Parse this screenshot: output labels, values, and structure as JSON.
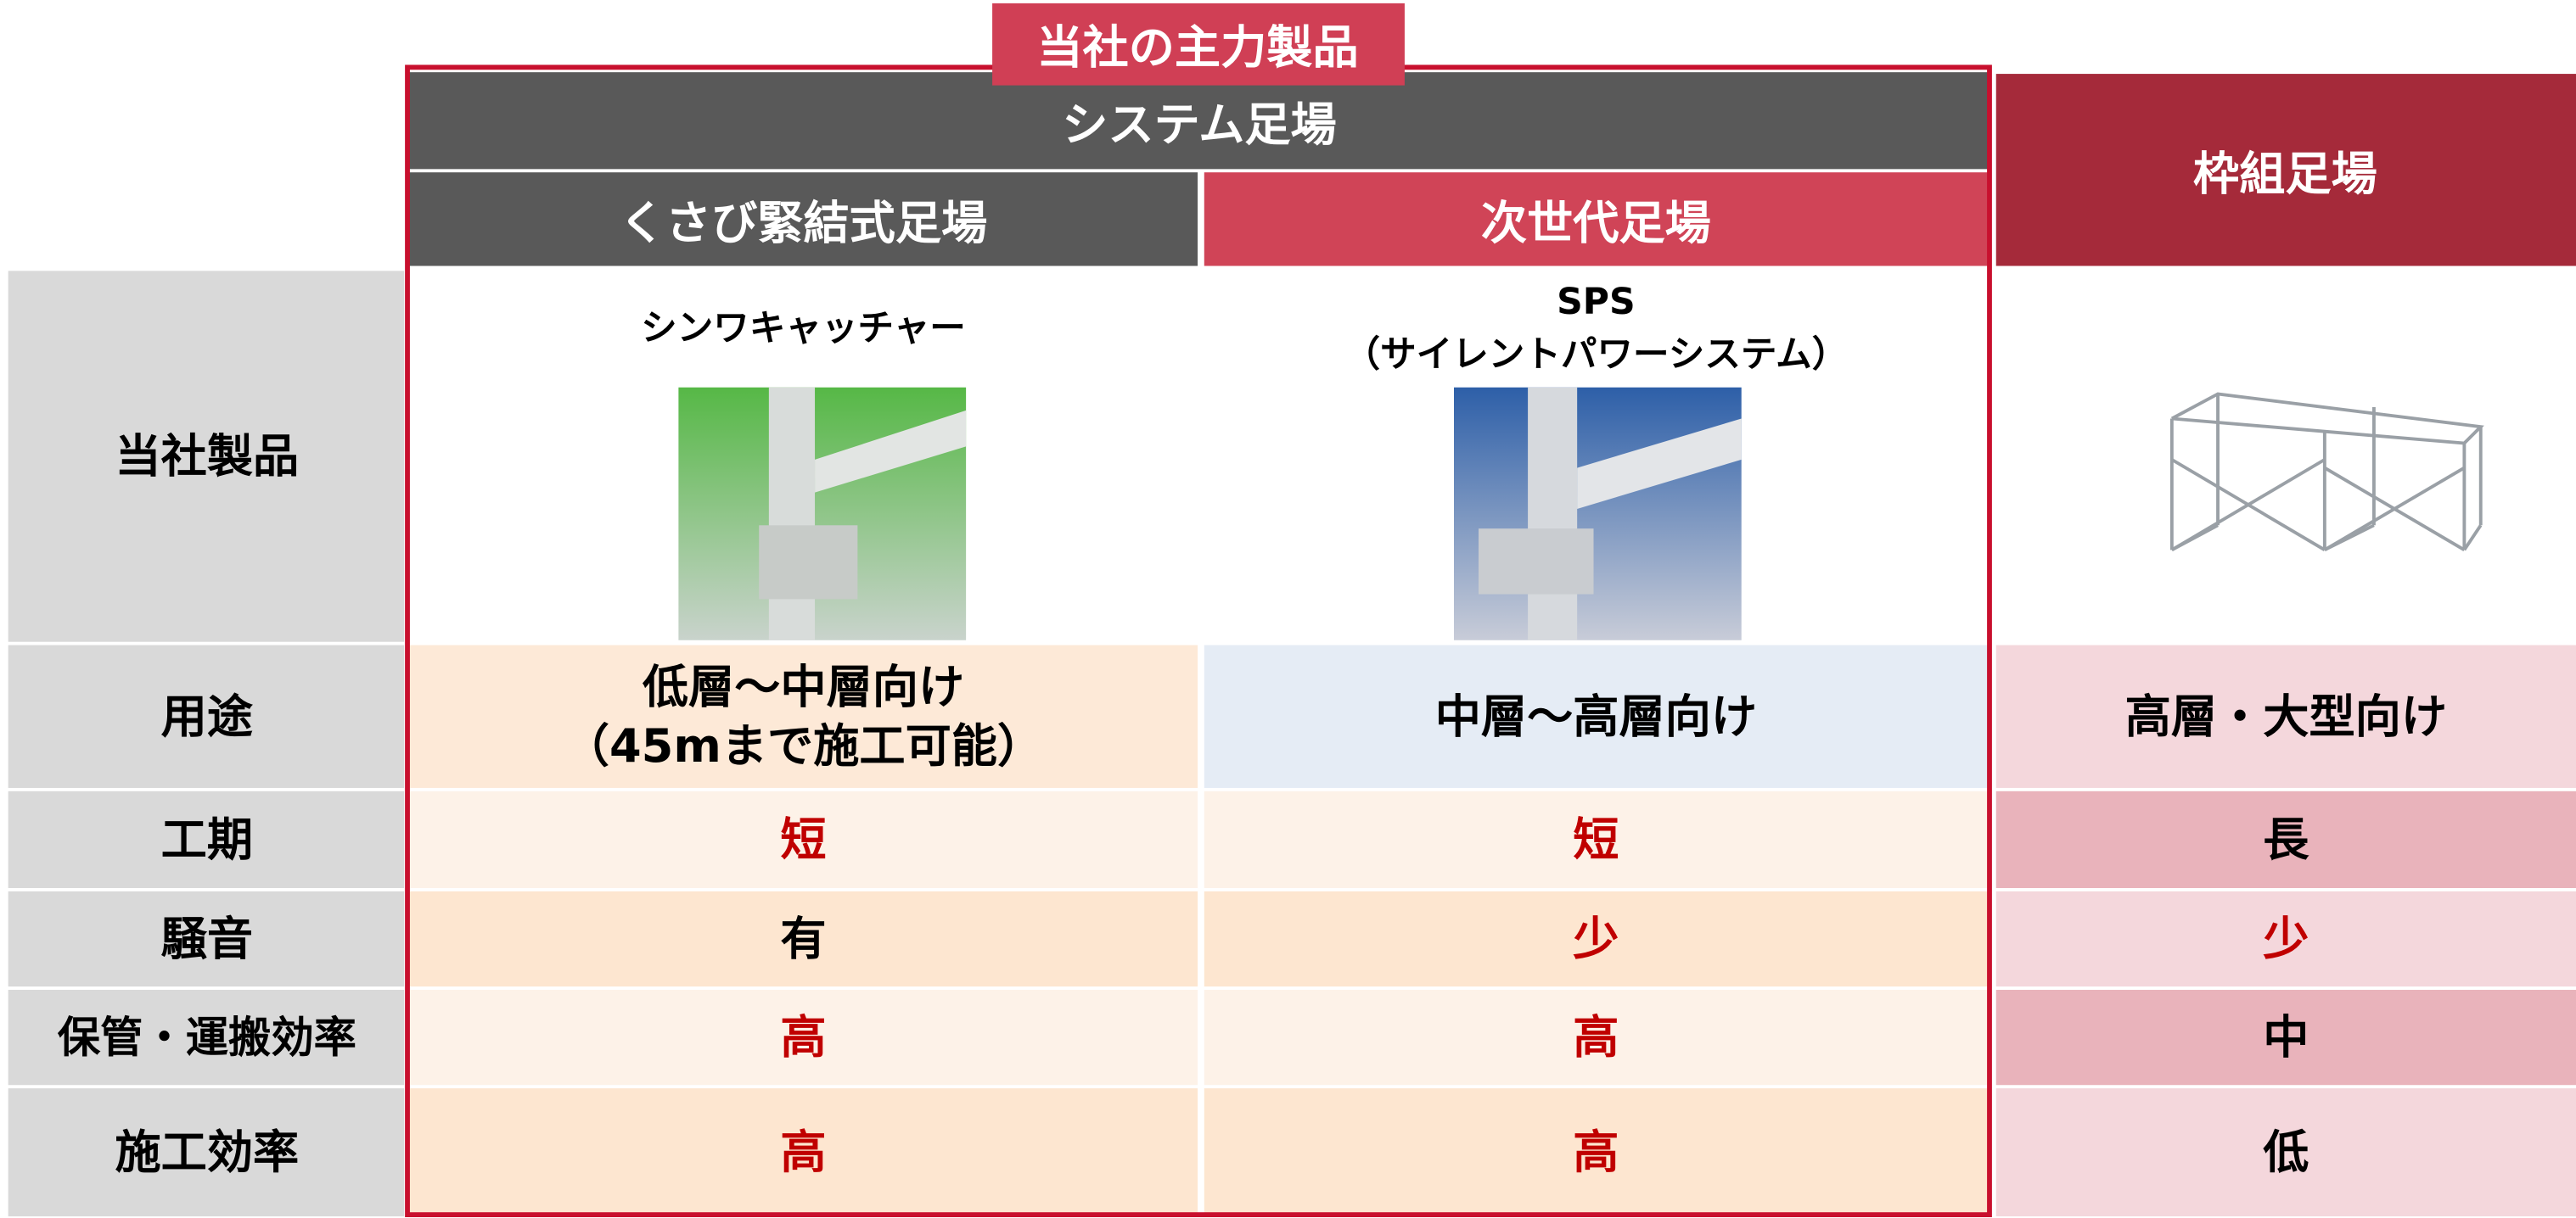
{
  "badge": "当社の主力製品",
  "group_header": "システム足場",
  "columns": [
    "くさび緊結式足場",
    "次世代足場",
    "枠組足場"
  ],
  "products": [
    [
      "シンワキャッチャー"
    ],
    [
      "SPS",
      "（サイレントパワーシステム）"
    ]
  ],
  "rows": [
    {
      "label": "当社製品"
    },
    {
      "label": "用途",
      "cells": [
        [
          "低層～中層向け",
          "（45mまで施工可能）"
        ],
        [
          "中層～高層向け"
        ],
        [
          "高層・大型向け"
        ]
      ]
    },
    {
      "label": "工期",
      "cells": [
        [
          "短"
        ],
        [
          "短"
        ],
        [
          "長"
        ]
      ]
    },
    {
      "label": "騒音",
      "cells": [
        [
          "有"
        ],
        [
          "少"
        ],
        [
          "少"
        ]
      ]
    },
    {
      "label": "保管・運搬効率",
      "cells": [
        [
          "高"
        ],
        [
          "高"
        ],
        [
          "中"
        ]
      ]
    },
    {
      "label": "施工効率",
      "cells": [
        [
          "高"
        ],
        [
          "高"
        ],
        [
          "低"
        ]
      ]
    }
  ]
}
